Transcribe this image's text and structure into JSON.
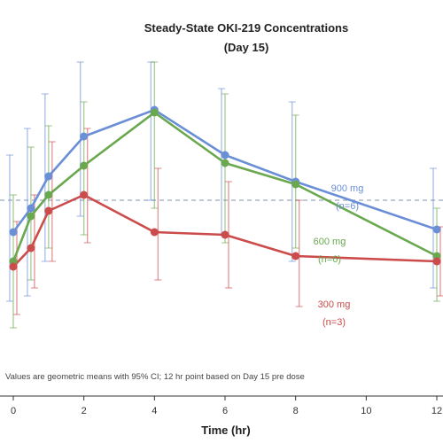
{
  "chart_data": {
    "type": "line",
    "title_line1": "Steady-State OKI-219 Concentrations",
    "title_line2": "(Day 15)",
    "xlabel": "Time (hr)",
    "ylabel": "",
    "x_ticks": [
      0,
      2,
      4,
      6,
      8,
      10,
      12
    ],
    "xlim": [
      0,
      12
    ],
    "ylim": [
      0,
      100
    ],
    "reference_line_y": 58,
    "footnote": "Values are geometric means with 95% CI; 12 hr point based on Day 15 pre dose",
    "colors": {
      "blue": "#6b8fd6",
      "green": "#6aa84f",
      "red": "#cc4b4b",
      "reference": "#9aa9bf",
      "axis": "#333333"
    },
    "x_positions": [
      0,
      0.5,
      1,
      2,
      4,
      6,
      8,
      12
    ],
    "series": [
      {
        "name": "900 mg",
        "n_label": "(n=6)",
        "color_key": "blue",
        "values": [
          46,
          55,
          67,
          82,
          92,
          75,
          65,
          47
        ],
        "ci_low": [
          20,
          22,
          35,
          52,
          58,
          45,
          35,
          25
        ],
        "ci_high": [
          75,
          85,
          98,
          110,
          118,
          100,
          95,
          70
        ]
      },
      {
        "name": "600 mg",
        "n_label": "(n=6)",
        "color_key": "green",
        "values": [
          35,
          52,
          60,
          71,
          91,
          72,
          64,
          37
        ],
        "ci_low": [
          10,
          28,
          40,
          45,
          55,
          42,
          40,
          20
        ],
        "ci_high": [
          60,
          78,
          86,
          95,
          115,
          98,
          90,
          55
        ]
      },
      {
        "name": "300 mg",
        "n_label": "(n=3)",
        "color_key": "red",
        "values": [
          33,
          40,
          54,
          60,
          46,
          45,
          37,
          35
        ],
        "ci_low": [
          15,
          25,
          35,
          42,
          28,
          25,
          18,
          22
        ],
        "ci_high": [
          50,
          60,
          80,
          85,
          70,
          65,
          58,
          48
        ]
      }
    ]
  }
}
